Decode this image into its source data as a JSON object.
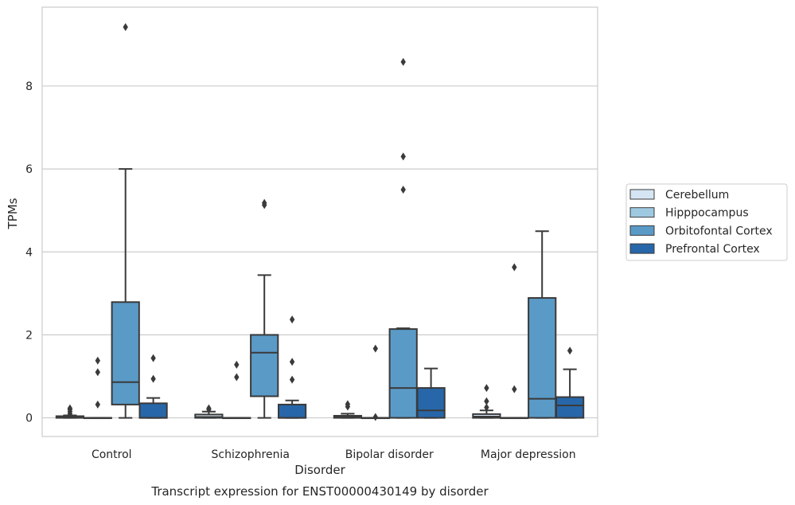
{
  "chart_data": {
    "type": "box",
    "caption": "Transcript expression for ENST00000430149 by disorder",
    "xlabel": "Disorder",
    "ylabel": "TPMs",
    "ylim": [
      -0.45,
      9.9
    ],
    "yticks": [
      0,
      2,
      4,
      6,
      8
    ],
    "grid": "horizontal",
    "legend_position": "right",
    "categories": [
      "Control",
      "Schizophrenia",
      "Bipolar disorder",
      "Major depression"
    ],
    "series": [
      {
        "name": "Cerebellum",
        "color": "#d6e5f4",
        "boxes": [
          {
            "q1": 0.0,
            "median": 0.02,
            "q3": 0.04,
            "whisker_low": 0.0,
            "whisker_high": 0.06,
            "outliers": [
              0.1,
              0.15,
              0.2,
              0.23
            ]
          },
          {
            "q1": 0.0,
            "median": 0.02,
            "q3": 0.08,
            "whisker_low": 0.0,
            "whisker_high": 0.15,
            "outliers": [
              0.2,
              0.23
            ]
          },
          {
            "q1": 0.0,
            "median": 0.02,
            "q3": 0.05,
            "whisker_low": 0.0,
            "whisker_high": 0.1,
            "outliers": [
              0.27,
              0.33
            ]
          },
          {
            "q1": 0.0,
            "median": 0.03,
            "q3": 0.09,
            "whisker_low": 0.0,
            "whisker_high": 0.18,
            "outliers": [
              0.25,
              0.4,
              0.72
            ]
          }
        ]
      },
      {
        "name": "Hipppocampus",
        "color": "#9ecae1",
        "boxes": [
          {
            "q1": 0.0,
            "median": 0.0,
            "q3": 0.0,
            "whisker_low": 0.0,
            "whisker_high": 0.0,
            "outliers": [
              0.32,
              1.1,
              1.38
            ]
          },
          {
            "q1": 0.0,
            "median": 0.0,
            "q3": 0.0,
            "whisker_low": 0.0,
            "whisker_high": 0.0,
            "outliers": [
              0.98,
              1.28
            ]
          },
          {
            "q1": 0.0,
            "median": 0.0,
            "q3": 0.0,
            "whisker_low": 0.0,
            "whisker_high": 0.0,
            "outliers": [
              0.02,
              1.67
            ]
          },
          {
            "q1": 0.0,
            "median": 0.0,
            "q3": 0.0,
            "whisker_low": 0.0,
            "whisker_high": 0.0,
            "outliers": [
              0.69,
              3.63
            ]
          }
        ]
      },
      {
        "name": "Orbitofontal Cortex",
        "color": "#5a9ac7",
        "boxes": [
          {
            "q1": 0.32,
            "median": 0.86,
            "q3": 2.79,
            "whisker_low": 0.0,
            "whisker_high": 6.0,
            "outliers": [
              9.42
            ]
          },
          {
            "q1": 0.52,
            "median": 1.57,
            "q3": 2.0,
            "whisker_low": 0.0,
            "whisker_high": 3.44,
            "outliers": [
              5.13,
              5.18
            ]
          },
          {
            "q1": 0.0,
            "median": 0.72,
            "q3": 2.14,
            "whisker_low": 0.0,
            "whisker_high": 2.16,
            "outliers": [
              5.5,
              6.3,
              8.58
            ]
          },
          {
            "q1": 0.0,
            "median": 0.46,
            "q3": 2.89,
            "whisker_low": 0.0,
            "whisker_high": 4.5,
            "outliers": []
          }
        ]
      },
      {
        "name": "Prefrontal Cortex",
        "color": "#2767a9",
        "boxes": [
          {
            "q1": 0.0,
            "median": 0.0,
            "q3": 0.35,
            "whisker_low": 0.0,
            "whisker_high": 0.48,
            "outliers": [
              0.94,
              1.44
            ]
          },
          {
            "q1": 0.0,
            "median": 0.0,
            "q3": 0.32,
            "whisker_low": 0.0,
            "whisker_high": 0.42,
            "outliers": [
              0.92,
              1.35,
              2.37
            ]
          },
          {
            "q1": 0.0,
            "median": 0.18,
            "q3": 0.72,
            "whisker_low": 0.0,
            "whisker_high": 1.19,
            "outliers": []
          },
          {
            "q1": 0.0,
            "median": 0.3,
            "q3": 0.5,
            "whisker_low": 0.0,
            "whisker_high": 1.17,
            "outliers": [
              1.62
            ]
          }
        ]
      }
    ]
  }
}
